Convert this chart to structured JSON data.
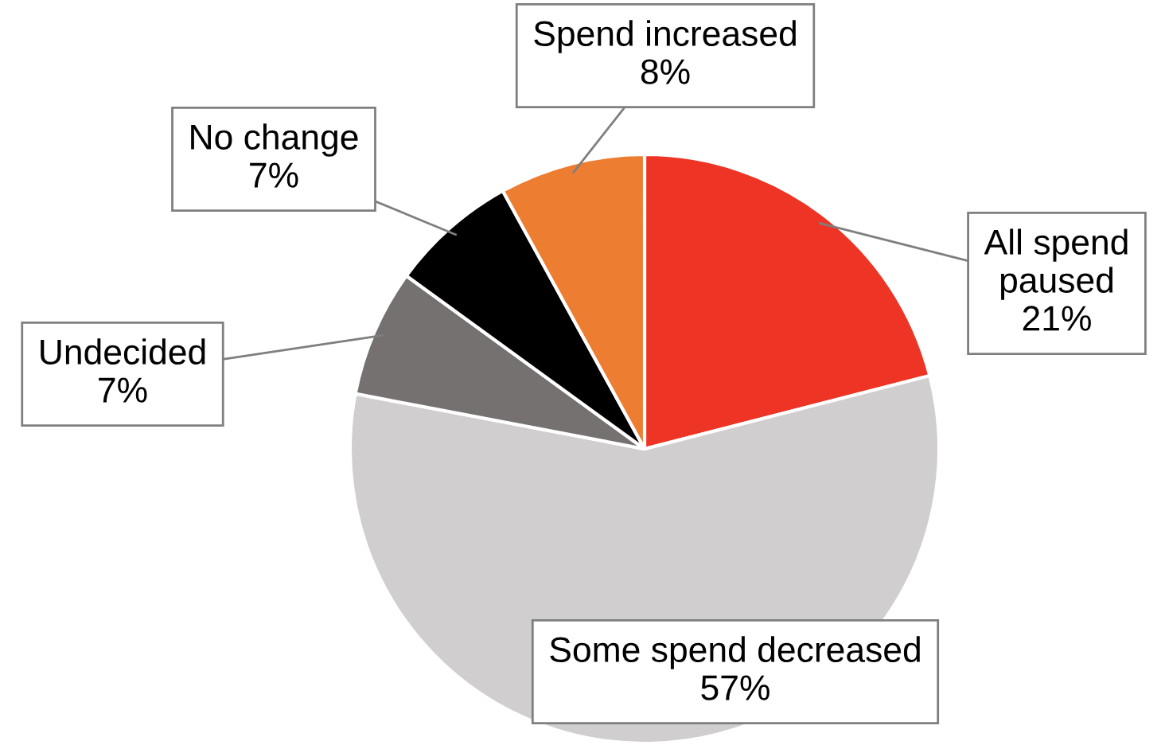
{
  "chart_data": {
    "type": "pie",
    "categories": [
      "All spend paused",
      "Some spend decreased",
      "Undecided",
      "No change",
      "Spend increased"
    ],
    "values": [
      21,
      57,
      7,
      7,
      8
    ],
    "colors": [
      "#ee3424",
      "#d0cece",
      "#767171",
      "#000000",
      "#ed7d31"
    ],
    "value_labels": [
      "21%",
      "57%",
      "7%",
      "7%",
      "8%"
    ]
  }
}
